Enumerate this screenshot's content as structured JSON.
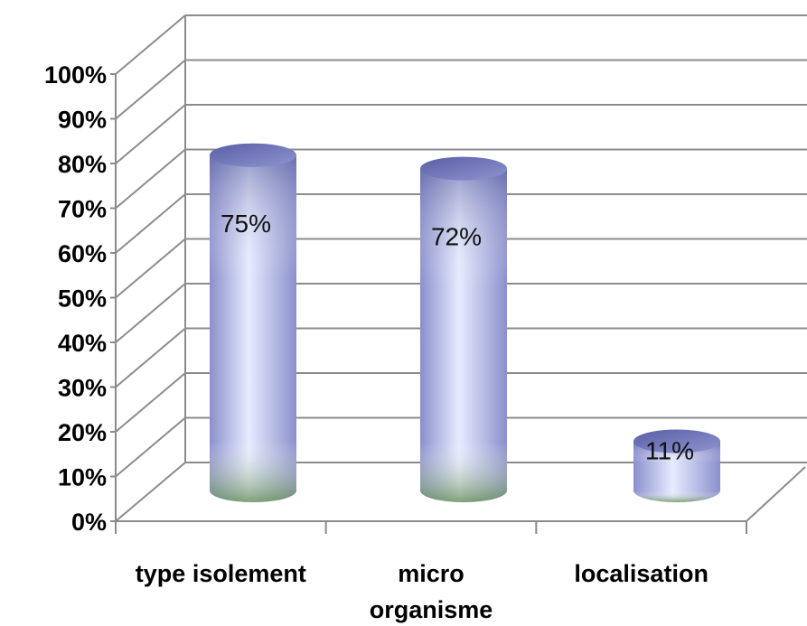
{
  "chart_data": {
    "type": "bar",
    "style": "3d-cylinder",
    "categories": [
      "type isolement",
      "micro organisme",
      "localisation"
    ],
    "category_lines": [
      [
        "type isolement"
      ],
      [
        "micro",
        "organisme"
      ],
      [
        "localisation"
      ]
    ],
    "values": [
      75,
      72,
      11
    ],
    "data_labels": [
      "75%",
      "72%",
      "11%"
    ],
    "ylim": [
      0,
      100
    ],
    "yticks": [
      0,
      10,
      20,
      30,
      40,
      50,
      60,
      70,
      80,
      90,
      100
    ],
    "ytick_labels": [
      "0%",
      "10%",
      "20%",
      "30%",
      "40%",
      "50%",
      "60%",
      "70%",
      "80%",
      "90%",
      "100%"
    ],
    "grid": true,
    "legend": "none",
    "colors": {
      "bar_top": "#7b7fc0",
      "bar_mid": "#eaf0ff",
      "bar_base": "#8aa77a",
      "grid": "#8c8c8c"
    }
  }
}
